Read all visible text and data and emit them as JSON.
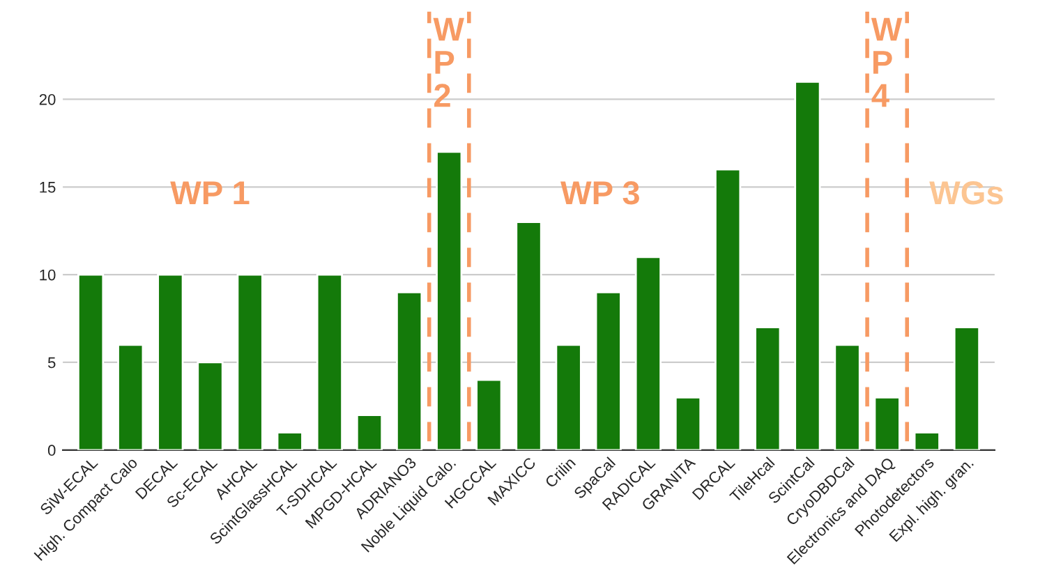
{
  "chart_data": {
    "type": "bar",
    "categories": [
      "SiW-ECAL",
      "High. Compact Calo",
      "DECAL",
      "Sc-ECAL",
      "AHCAL",
      "ScintGlassHCAL",
      "T-SDHCAL",
      "MPGD-HCAL",
      "ADRIANO3",
      "Noble Liquid Calo.",
      "HGCCAL",
      "MAXICC",
      "Crilin",
      "SpaCal",
      "RADICAL",
      "GRANITA",
      "DRCAL",
      "TileHcal",
      "ScintCal",
      "CryoDBDCal",
      "Electronics and DAQ",
      "Photodetectors",
      "Expl. high. gran."
    ],
    "values": [
      10,
      6,
      10,
      5,
      10,
      1,
      10,
      2,
      9,
      17,
      4,
      13,
      6,
      9,
      11,
      3,
      16,
      7,
      21,
      6,
      3,
      1,
      7
    ],
    "color": "#147a0a",
    "ylim": [
      0,
      25
    ],
    "yticks": [
      0,
      5,
      10,
      15,
      20
    ],
    "grid": "y",
    "annotations": [
      "WP 1",
      "W\nP\n2",
      "WP 3",
      "W\nP\n4",
      "WGs"
    ]
  }
}
